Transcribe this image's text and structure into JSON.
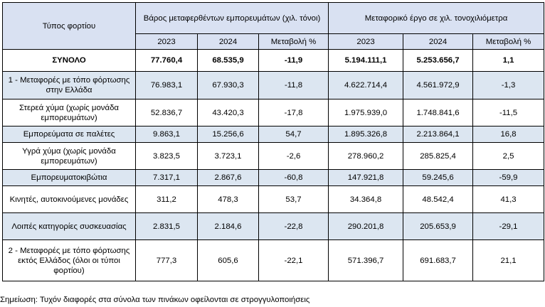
{
  "header": {
    "col_type": "Τύπος φορτίου",
    "group1": "Βάρος μεταφερθέντων εμπορευμάτων (χιλ. τόνοι)",
    "group2": "Μεταφορικό έργο σε χιλ. τονοχιλιόμετρα",
    "sub": [
      "2023",
      "2024",
      "Μεταβολή %",
      "2023",
      "2024",
      "Μεταβολή %"
    ]
  },
  "rows": [
    {
      "label": "ΣΥΝΟΛΟ",
      "values": [
        "77.760,4",
        "68.535,9",
        "-11,9",
        "5.194.111,1",
        "5.253.656,7",
        "1,1"
      ]
    },
    {
      "label": "1 - Μεταφορές με τόπο φόρτωσης στην Ελλάδα",
      "values": [
        "76.983,1",
        "67.930,3",
        "-11,8",
        "4.622.714,4",
        "4.561.972,9",
        "-1,3"
      ]
    },
    {
      "label": "Στερεά χύμα (χωρίς μονάδα εμπορευμάτων)",
      "values": [
        "52.836,7",
        "43.420,3",
        "-17,8",
        "1.975.939,0",
        "1.748.841,6",
        "-11,5"
      ]
    },
    {
      "label": "Εμπορεύματα σε παλέτες",
      "values": [
        "9.863,1",
        "15.256,6",
        "54,7",
        "1.895.326,8",
        "2.213.864,1",
        "16,8"
      ]
    },
    {
      "label": "Υγρά χύμα (χωρίς μονάδα εμπορευμάτων)",
      "values": [
        "3.823,5",
        "3.723,1",
        "-2,6",
        "278.960,2",
        "285.825,4",
        "2,5"
      ]
    },
    {
      "label": "Εμπορευματοκιβώτια",
      "values": [
        "7.317,1",
        "2.867,6",
        "-60,8",
        "147.921,8",
        "59.245,6",
        "-59,9"
      ]
    },
    {
      "label": "Κινητές, αυτοκινούμενες μονάδες",
      "values": [
        "311,2",
        "478,3",
        "53,7",
        "34.364,8",
        "48.542,4",
        "41,3"
      ]
    },
    {
      "label": "Λοιπές κατηγορίες συσκευασίας",
      "values": [
        "2.831,5",
        "2.184,6",
        "-22,8",
        "290.201,8",
        "205.653,9",
        "-29,1"
      ]
    },
    {
      "label": "2 - Μεταφορές με τόπο φόρτωσης εκτός Ελλάδος (όλοι οι τύποι φορτίου)",
      "values": [
        "777,3",
        "605,6",
        "-22,1",
        "571.396,7",
        "691.683,7",
        "21,1"
      ]
    }
  ],
  "note": "Σημείωση: Τυχόν διαφορές στα σύνολα των πινάκων οφείλονται σε στρογγυλοποιήσεις"
}
